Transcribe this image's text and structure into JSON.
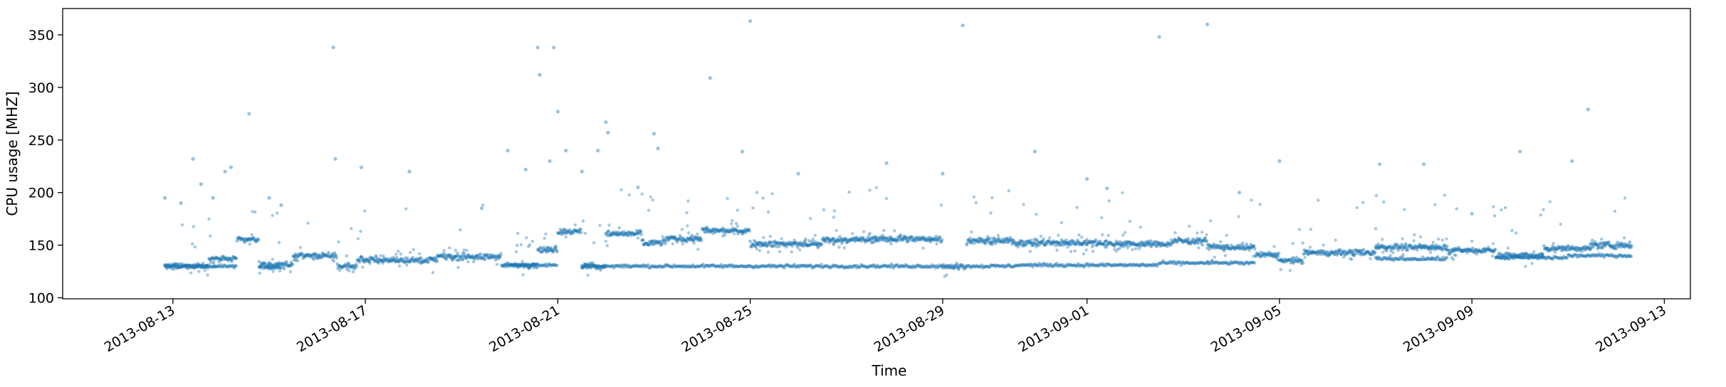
{
  "chart_data": {
    "type": "scatter",
    "title": "",
    "xlabel": "Time",
    "ylabel": "CPU usage [MHZ]",
    "xlim": [
      "2013-08-10T17:00",
      "2013-09-13T13:00"
    ],
    "ylim": [
      99,
      375
    ],
    "x_ticks": [
      "2013-08-13",
      "2013-08-17",
      "2013-08-21",
      "2013-08-25",
      "2013-08-29",
      "2013-09-01",
      "2013-09-05",
      "2013-09-09",
      "2013-09-13"
    ],
    "y_ticks": [
      100,
      150,
      200,
      250,
      300,
      350
    ],
    "grid": false,
    "legend": "none",
    "marker_color": "#1f77b4",
    "marker_alpha": 0.45,
    "series": [
      {
        "points_description_note": "",
        "baseline_segments": [
          [
            "2013-08-12T20:00",
            "2013-08-13T18:00",
            130
          ],
          [
            "2013-08-13T18:00",
            "2013-08-14T08:00",
            137
          ],
          [
            "2013-08-14T08:00",
            "2013-08-14T19:00",
            155
          ],
          [
            "2013-08-14T19:00",
            "2013-08-15T12:00",
            131
          ],
          [
            "2013-08-15T12:00",
            "2013-08-16T10:00",
            140
          ],
          [
            "2013-08-16T10:00",
            "2013-08-16T20:00",
            130
          ],
          [
            "2013-08-16T20:00",
            "2013-08-18T12:00",
            136
          ],
          [
            "2013-08-18T12:00",
            "2013-08-19T20:00",
            139
          ],
          [
            "2013-08-19T20:00",
            "2013-08-20T14:00",
            131
          ],
          [
            "2013-08-20T14:00",
            "2013-08-21T00:00",
            146
          ],
          [
            "2013-08-21T00:00",
            "2013-08-21T12:00",
            163
          ],
          [
            "2013-08-21T12:00",
            "2013-08-22T00:00",
            130
          ],
          [
            "2013-08-22T00:00",
            "2013-08-22T18:00",
            161
          ],
          [
            "2013-08-22T18:00",
            "2013-08-23T06:00",
            152
          ],
          [
            "2013-08-23T06:00",
            "2013-08-24T00:00",
            156
          ],
          [
            "2013-08-24T00:00",
            "2013-08-25T00:00",
            164
          ],
          [
            "2013-08-25T00:00",
            "2013-08-26T12:00",
            151
          ],
          [
            "2013-08-26T12:00",
            "2013-08-27T14:00",
            155
          ],
          [
            "2013-08-27T14:00",
            "2013-08-29T00:00",
            156
          ],
          [
            "2013-08-29T00:00",
            "2013-08-29T12:00",
            130
          ],
          [
            "2013-08-29T12:00",
            "2013-08-30T12:00",
            154
          ],
          [
            "2013-08-30T12:00",
            "2013-09-01T12:00",
            152
          ],
          [
            "2013-09-01T12:00",
            "2013-09-02T18:00",
            151
          ],
          [
            "2013-09-02T18:00",
            "2013-09-03T12:00",
            154
          ],
          [
            "2013-09-03T12:00",
            "2013-09-04T12:00",
            148
          ],
          [
            "2013-09-04T12:00",
            "2013-09-05T00:00",
            141
          ],
          [
            "2013-09-05T00:00",
            "2013-09-05T12:00",
            135
          ],
          [
            "2013-09-05T12:00",
            "2013-09-07T00:00",
            143
          ],
          [
            "2013-09-07T00:00",
            "2013-09-08T12:00",
            148
          ],
          [
            "2013-09-08T12:00",
            "2013-09-09T12:00",
            145
          ],
          [
            "2013-09-09T12:00",
            "2013-09-10T12:00",
            140
          ],
          [
            "2013-09-10T12:00",
            "2013-09-11T12:00",
            147
          ],
          [
            "2013-09-11T12:00",
            "2013-09-12T08:00",
            150
          ]
        ],
        "lower_band_segments": [
          [
            "2013-08-12T20:00",
            "2013-08-14T08:00",
            130
          ],
          [
            "2013-08-14T19:00",
            "2013-08-15T06:00",
            129
          ],
          [
            "2013-08-20T00:00",
            "2013-08-21T00:00",
            131
          ],
          [
            "2013-08-21T12:00",
            "2013-08-29T00:00",
            130
          ],
          [
            "2013-08-29T12:00",
            "2013-08-30T12:00",
            130
          ],
          [
            "2013-08-30T12:00",
            "2013-09-02T12:00",
            131
          ],
          [
            "2013-09-02T12:00",
            "2013-09-04T12:00",
            133
          ],
          [
            "2013-09-07T00:00",
            "2013-09-08T12:00",
            137
          ],
          [
            "2013-09-09T12:00",
            "2013-09-11T00:00",
            138
          ],
          [
            "2013-09-11T00:00",
            "2013-09-12T08:00",
            140
          ]
        ],
        "outliers": [
          [
            "2013-08-12T20:00",
            195
          ],
          [
            "2013-08-13T04:00",
            190
          ],
          [
            "2013-08-13T10:00",
            232
          ],
          [
            "2013-08-13T14:00",
            208
          ],
          [
            "2013-08-13T20:00",
            195
          ],
          [
            "2013-08-14T02:00",
            220
          ],
          [
            "2013-08-14T05:00",
            224
          ],
          [
            "2013-08-14T14:00",
            275
          ],
          [
            "2013-08-15T00:00",
            195
          ],
          [
            "2013-08-15T06:00",
            188
          ],
          [
            "2013-08-16T08:00",
            338
          ],
          [
            "2013-08-16T09:00",
            232
          ],
          [
            "2013-08-16T22:00",
            224
          ],
          [
            "2013-08-17T22:00",
            220
          ],
          [
            "2013-08-19T10:00",
            185
          ],
          [
            "2013-08-19T23:00",
            240
          ],
          [
            "2013-08-20T08:00",
            222
          ],
          [
            "2013-08-20T14:00",
            338
          ],
          [
            "2013-08-20T15:00",
            312
          ],
          [
            "2013-08-20T20:00",
            230
          ],
          [
            "2013-08-20T22:00",
            338
          ],
          [
            "2013-08-21T00:00",
            277
          ],
          [
            "2013-08-21T04:00",
            240
          ],
          [
            "2013-08-21T12:00",
            220
          ],
          [
            "2013-08-21T20:00",
            240
          ],
          [
            "2013-08-22T00:00",
            267
          ],
          [
            "2013-08-22T01:00",
            257
          ],
          [
            "2013-08-22T16:00",
            205
          ],
          [
            "2013-08-23T00:00",
            256
          ],
          [
            "2013-08-23T02:00",
            242
          ],
          [
            "2013-08-24T04:00",
            309
          ],
          [
            "2013-08-24T20:00",
            239
          ],
          [
            "2013-08-25T00:00",
            363
          ],
          [
            "2013-08-26T00:00",
            218
          ],
          [
            "2013-08-27T20:00",
            228
          ],
          [
            "2013-08-29T00:00",
            218
          ],
          [
            "2013-08-29T10:00",
            359
          ],
          [
            "2013-08-30T22:00",
            239
          ],
          [
            "2013-09-01T00:00",
            213
          ],
          [
            "2013-09-01T10:00",
            204
          ],
          [
            "2013-09-02T12:00",
            348
          ],
          [
            "2013-09-03T12:00",
            360
          ],
          [
            "2013-09-04T04:00",
            200
          ],
          [
            "2013-09-05T00:00",
            230
          ],
          [
            "2013-09-07T02:00",
            227
          ],
          [
            "2013-09-08T00:00",
            227
          ],
          [
            "2013-09-10T00:00",
            239
          ],
          [
            "2013-09-11T02:00",
            230
          ],
          [
            "2013-09-11T10:00",
            279
          ],
          [
            "2013-09-09T00:00",
            180
          ]
        ]
      }
    ]
  }
}
